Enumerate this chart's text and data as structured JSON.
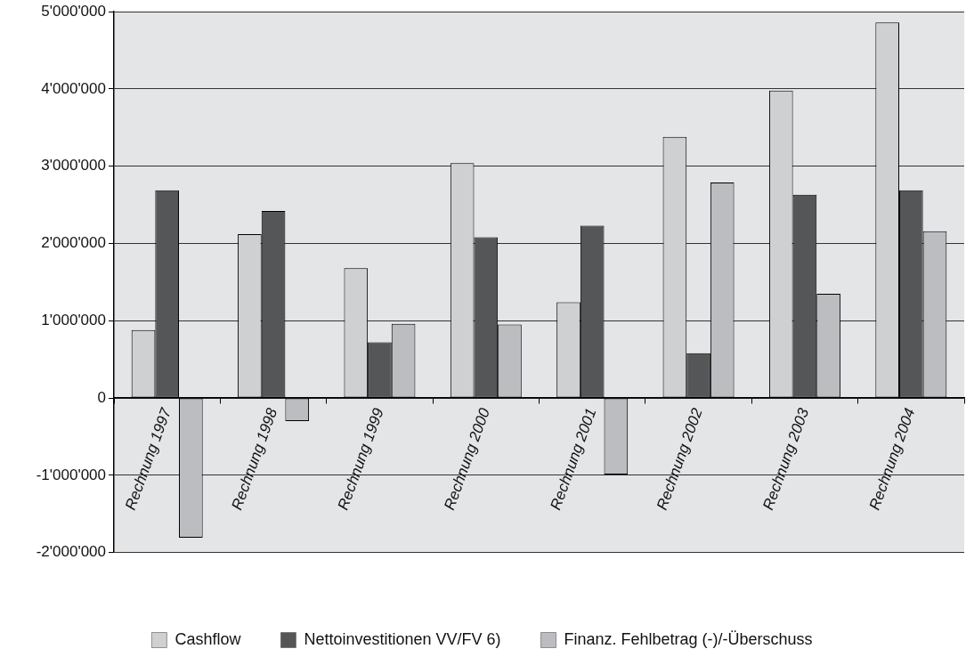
{
  "chart_data": {
    "type": "bar",
    "categories": [
      "Rechnung 1997",
      "Rechnung 1998",
      "Rechnung 1999",
      "Rechnung 2000",
      "Rechnung 2001",
      "Rechnung 2002",
      "Rechnung 2003",
      "Rechnung 2004"
    ],
    "series": [
      {
        "name": "Cashflow",
        "color": "#cfd0d2",
        "values": [
          880000,
          2120000,
          1680000,
          3040000,
          1240000,
          3380000,
          3980000,
          4860000
        ]
      },
      {
        "name": "Nettoinvestitionen VV/FV 6)",
        "color": "#555657",
        "values": [
          2690000,
          2420000,
          720000,
          2080000,
          2230000,
          580000,
          2630000,
          2690000
        ]
      },
      {
        "name": "Finanz. Fehlbetrag (-)/-Überschuss",
        "color": "#bcbdc1",
        "values": [
          -1810000,
          -300000,
          960000,
          950000,
          -990000,
          2790000,
          1350000,
          2160000
        ]
      }
    ],
    "ylim": [
      -2000000,
      5000000
    ],
    "yticks": [
      {
        "value": -2000000,
        "label": "-2'000'000"
      },
      {
        "value": -1000000,
        "label": "-1'000'000"
      },
      {
        "value": 0,
        "label": "0"
      },
      {
        "value": 1000000,
        "label": "1'000'000"
      },
      {
        "value": 2000000,
        "label": "2'000'000"
      },
      {
        "value": 3000000,
        "label": "3'000'000"
      },
      {
        "value": 4000000,
        "label": "4'000'000"
      },
      {
        "value": 5000000,
        "label": "5'000'000"
      }
    ],
    "grid": "y",
    "legend": "bottom"
  }
}
